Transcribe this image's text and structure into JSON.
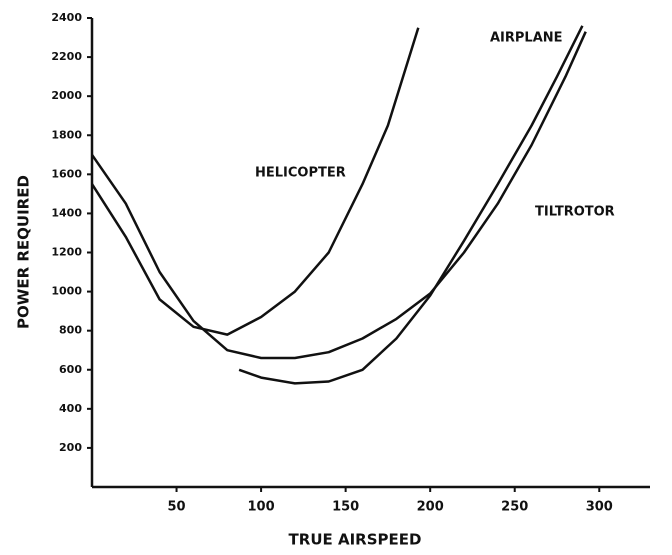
{
  "chart_data": {
    "type": "line",
    "x_label": "TRUE AIRSPEED",
    "y_label": "POWER REQUIRED",
    "xlim": [
      0,
      330
    ],
    "ylim": [
      0,
      2400
    ],
    "xticks": [
      50,
      100,
      150,
      200,
      250,
      300
    ],
    "yticks": [
      200,
      400,
      600,
      800,
      1000,
      1200,
      1400,
      1600,
      1800,
      2000,
      2200,
      2400
    ],
    "grid": false,
    "series": [
      {
        "name": "HELICOPTER",
        "color": "#111111",
        "x": [
          0,
          20,
          40,
          60,
          80,
          100,
          120,
          140,
          160,
          175,
          193
        ],
        "values": [
          1550,
          1280,
          960,
          820,
          780,
          870,
          1000,
          1200,
          1550,
          1850,
          2350
        ]
      },
      {
        "name": "AIRPLANE",
        "color": "#111111",
        "x": [
          87,
          100,
          120,
          140,
          160,
          180,
          200,
          220,
          240,
          260,
          275,
          290
        ],
        "values": [
          600,
          560,
          530,
          540,
          600,
          760,
          980,
          1260,
          1550,
          1850,
          2100,
          2360
        ]
      },
      {
        "name": "TILTROTOR",
        "color": "#111111",
        "x": [
          0,
          20,
          40,
          60,
          80,
          100,
          120,
          140,
          160,
          180,
          200,
          220,
          240,
          260,
          280,
          292
        ],
        "values": [
          1700,
          1450,
          1100,
          850,
          700,
          660,
          660,
          690,
          760,
          860,
          990,
          1200,
          1450,
          1750,
          2100,
          2330
        ]
      }
    ]
  }
}
